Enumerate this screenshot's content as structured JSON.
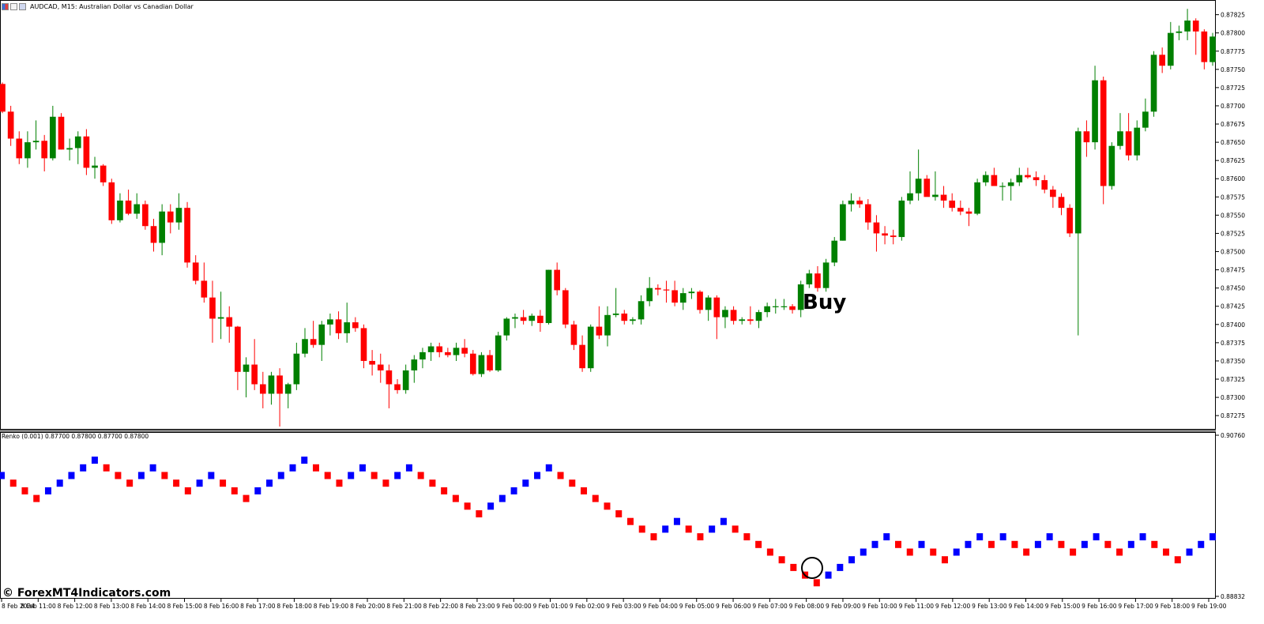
{
  "window": {
    "title": "AUDCAD, M15:  Australian Dollar vs Canadian Dollar",
    "icons": [
      "chart-type-icon",
      "window-icon",
      "properties-icon"
    ]
  },
  "colors": {
    "bull_candle": "#008000",
    "bear_candle": "#ff0000",
    "renko_up": "#0000ff",
    "renko_down": "#ff0000",
    "frame": "#000000",
    "separator": "#808080",
    "background": "#ffffff"
  },
  "annotations": {
    "buy_label": "Buy",
    "circle_marker": "renko-reversal-circle"
  },
  "watermark": "© ForexMT4Indicators.com",
  "renko_indicator": {
    "title": "Renko (0.001) 0.87700 0.87800 0.87700 0.87800",
    "y_ticks": [
      "0.90760",
      "0.88832"
    ]
  },
  "chart_data": [
    {
      "type": "candlestick",
      "title": "AUDCAD, M15:  Australian Dollar vs Canadian Dollar",
      "ylim": [
        0.8726,
        0.87843
      ],
      "y_ticks": [
        "0.87825",
        "0.87800",
        "0.87775",
        "0.87750",
        "0.87725",
        "0.87700",
        "0.87675",
        "0.87650",
        "0.87625",
        "0.87600",
        "0.87575",
        "0.87550",
        "0.87525",
        "0.87500",
        "0.87475",
        "0.87450",
        "0.87425",
        "0.87400",
        "0.87375",
        "0.87350",
        "0.87325",
        "0.87300",
        "0.87275"
      ],
      "x_ticks": [
        "8 Feb 2024",
        "8 Feb 11:00",
        "8 Feb 12:00",
        "8 Feb 13:00",
        "8 Feb 14:00",
        "8 Feb 15:00",
        "8 Feb 16:00",
        "8 Feb 17:00",
        "8 Feb 18:00",
        "8 Feb 19:00",
        "8 Feb 20:00",
        "8 Feb 21:00",
        "8 Feb 22:00",
        "8 Feb 23:00",
        "9 Feb 00:00",
        "9 Feb 01:00",
        "9 Feb 02:00",
        "9 Feb 03:00",
        "9 Feb 04:00",
        "9 Feb 05:00",
        "9 Feb 06:00",
        "9 Feb 07:00",
        "9 Feb 08:00",
        "9 Feb 09:00",
        "9 Feb 10:00",
        "9 Feb 11:00",
        "9 Feb 12:00",
        "9 Feb 13:00",
        "9 Feb 14:00",
        "9 Feb 15:00",
        "9 Feb 16:00",
        "9 Feb 17:00",
        "9 Feb 18:00",
        "9 Feb 19:00"
      ],
      "candles": [
        [
          0.8773,
          0.87732,
          0.8769,
          0.87692
        ],
        [
          0.87692,
          0.877,
          0.87645,
          0.87655
        ],
        [
          0.87655,
          0.87665,
          0.8762,
          0.87628
        ],
        [
          0.87628,
          0.87665,
          0.87615,
          0.8765
        ],
        [
          0.8765,
          0.8768,
          0.8764,
          0.87652
        ],
        [
          0.87652,
          0.8766,
          0.8761,
          0.87628
        ],
        [
          0.87628,
          0.877,
          0.87625,
          0.87685
        ],
        [
          0.87685,
          0.8769,
          0.8764,
          0.8764
        ],
        [
          0.8764,
          0.87655,
          0.87625,
          0.87642
        ],
        [
          0.87642,
          0.87665,
          0.8762,
          0.87658
        ],
        [
          0.87658,
          0.87668,
          0.87605,
          0.87615
        ],
        [
          0.87615,
          0.8763,
          0.876,
          0.87618
        ],
        [
          0.87618,
          0.8762,
          0.8759,
          0.87595
        ],
        [
          0.87595,
          0.876,
          0.87538,
          0.87543
        ],
        [
          0.87543,
          0.8758,
          0.8754,
          0.8757
        ],
        [
          0.8757,
          0.87585,
          0.8755,
          0.87552
        ],
        [
          0.87552,
          0.8758,
          0.87545,
          0.87565
        ],
        [
          0.87565,
          0.8757,
          0.8753,
          0.87535
        ],
        [
          0.87535,
          0.87545,
          0.875,
          0.87512
        ],
        [
          0.87512,
          0.87565,
          0.87495,
          0.87555
        ],
        [
          0.87555,
          0.87565,
          0.87525,
          0.8754
        ],
        [
          0.8754,
          0.8758,
          0.8753,
          0.8756
        ],
        [
          0.8756,
          0.87568,
          0.87478,
          0.87485
        ],
        [
          0.87485,
          0.87495,
          0.87455,
          0.8746
        ],
        [
          0.8746,
          0.87485,
          0.8743,
          0.87437
        ],
        [
          0.87437,
          0.8746,
          0.87375,
          0.87408
        ],
        [
          0.87408,
          0.87445,
          0.8738,
          0.8741
        ],
        [
          0.8741,
          0.87425,
          0.87375,
          0.87397
        ],
        [
          0.87397,
          0.87398,
          0.8731,
          0.87335
        ],
        [
          0.87335,
          0.87355,
          0.873,
          0.87345
        ],
        [
          0.87345,
          0.8738,
          0.8731,
          0.87318
        ],
        [
          0.87318,
          0.87335,
          0.87285,
          0.87305
        ],
        [
          0.87305,
          0.87335,
          0.8729,
          0.8733
        ],
        [
          0.8733,
          0.8734,
          0.8726,
          0.87305
        ],
        [
          0.87305,
          0.8732,
          0.87285,
          0.87318
        ],
        [
          0.87318,
          0.87375,
          0.8731,
          0.8736
        ],
        [
          0.8736,
          0.87395,
          0.87355,
          0.8738
        ],
        [
          0.8738,
          0.87405,
          0.87368,
          0.87372
        ],
        [
          0.87372,
          0.87405,
          0.8735,
          0.874
        ],
        [
          0.874,
          0.87415,
          0.87385,
          0.87407
        ],
        [
          0.87407,
          0.87418,
          0.8738,
          0.87388
        ],
        [
          0.87388,
          0.8743,
          0.87375,
          0.87403
        ],
        [
          0.87403,
          0.8741,
          0.8739,
          0.87395
        ],
        [
          0.87395,
          0.874,
          0.8734,
          0.8735
        ],
        [
          0.8735,
          0.87365,
          0.8733,
          0.87345
        ],
        [
          0.87345,
          0.8736,
          0.8732,
          0.87337
        ],
        [
          0.87337,
          0.87345,
          0.87285,
          0.87318
        ],
        [
          0.87318,
          0.87325,
          0.87305,
          0.8731
        ],
        [
          0.8731,
          0.87345,
          0.87305,
          0.87337
        ],
        [
          0.87337,
          0.87358,
          0.8732,
          0.87352
        ],
        [
          0.87352,
          0.87368,
          0.8734,
          0.87362
        ],
        [
          0.87362,
          0.87375,
          0.8735,
          0.8737
        ],
        [
          0.8737,
          0.87375,
          0.87355,
          0.87362
        ],
        [
          0.87362,
          0.87368,
          0.87355,
          0.87358
        ],
        [
          0.87358,
          0.87375,
          0.8735,
          0.87368
        ],
        [
          0.87368,
          0.8738,
          0.87355,
          0.8736
        ],
        [
          0.8736,
          0.87365,
          0.8733,
          0.87332
        ],
        [
          0.87332,
          0.87362,
          0.87328,
          0.87358
        ],
        [
          0.87358,
          0.87365,
          0.87335,
          0.87337
        ],
        [
          0.87337,
          0.8739,
          0.87335,
          0.87385
        ],
        [
          0.87385,
          0.8741,
          0.87378,
          0.87408
        ],
        [
          0.87408,
          0.87415,
          0.87395,
          0.8741
        ],
        [
          0.8741,
          0.8742,
          0.874,
          0.87405
        ],
        [
          0.87405,
          0.87415,
          0.87398,
          0.87412
        ],
        [
          0.87412,
          0.8742,
          0.8739,
          0.87402
        ],
        [
          0.87402,
          0.87475,
          0.874,
          0.87475
        ],
        [
          0.87475,
          0.87485,
          0.8744,
          0.87447
        ],
        [
          0.87447,
          0.8745,
          0.87395,
          0.874
        ],
        [
          0.874,
          0.87405,
          0.87365,
          0.87372
        ],
        [
          0.87372,
          0.87385,
          0.87335,
          0.8734
        ],
        [
          0.8734,
          0.874,
          0.87335,
          0.87397
        ],
        [
          0.87397,
          0.87425,
          0.8738,
          0.87385
        ],
        [
          0.87385,
          0.87425,
          0.8737,
          0.87413
        ],
        [
          0.87413,
          0.8745,
          0.8741,
          0.87415
        ],
        [
          0.87415,
          0.8742,
          0.874,
          0.87405
        ],
        [
          0.87405,
          0.8741,
          0.874,
          0.87407
        ],
        [
          0.87407,
          0.8744,
          0.874,
          0.87432
        ],
        [
          0.87432,
          0.87465,
          0.87425,
          0.8745
        ],
        [
          0.8745,
          0.87455,
          0.8744,
          0.87448
        ],
        [
          0.87448,
          0.8746,
          0.8743,
          0.87447
        ],
        [
          0.87447,
          0.8746,
          0.87425,
          0.8743
        ],
        [
          0.8743,
          0.8745,
          0.8742,
          0.87443
        ],
        [
          0.87443,
          0.8745,
          0.87435,
          0.87445
        ],
        [
          0.87445,
          0.87447,
          0.87415,
          0.8742
        ],
        [
          0.8742,
          0.8744,
          0.87405,
          0.87437
        ],
        [
          0.87437,
          0.8744,
          0.8738,
          0.8741
        ],
        [
          0.8741,
          0.87425,
          0.87395,
          0.8742
        ],
        [
          0.8742,
          0.87425,
          0.874,
          0.87405
        ],
        [
          0.87405,
          0.8741,
          0.874,
          0.87407
        ],
        [
          0.87407,
          0.87425,
          0.874,
          0.87405
        ],
        [
          0.87405,
          0.8742,
          0.87395,
          0.87417
        ],
        [
          0.87417,
          0.8743,
          0.8741,
          0.87425
        ],
        [
          0.87425,
          0.87435,
          0.87415,
          0.87425
        ],
        [
          0.87425,
          0.87435,
          0.8742,
          0.87425
        ],
        [
          0.87425,
          0.87428,
          0.87415,
          0.8742
        ],
        [
          0.8742,
          0.8746,
          0.8741,
          0.87455
        ],
        [
          0.87455,
          0.87475,
          0.8745,
          0.8747
        ],
        [
          0.8747,
          0.8748,
          0.87445,
          0.8745
        ],
        [
          0.8745,
          0.8749,
          0.87445,
          0.87485
        ],
        [
          0.87485,
          0.8752,
          0.8748,
          0.87515
        ],
        [
          0.87515,
          0.8757,
          0.87515,
          0.87565
        ],
        [
          0.87565,
          0.8758,
          0.87555,
          0.8757
        ],
        [
          0.8757,
          0.87575,
          0.8756,
          0.87565
        ],
        [
          0.87565,
          0.87572,
          0.8753,
          0.8754
        ],
        [
          0.8754,
          0.8755,
          0.875,
          0.87525
        ],
        [
          0.87525,
          0.87535,
          0.8751,
          0.87522
        ],
        [
          0.87522,
          0.8753,
          0.8751,
          0.8752
        ],
        [
          0.8752,
          0.87575,
          0.87515,
          0.8757
        ],
        [
          0.8757,
          0.8761,
          0.87565,
          0.8758
        ],
        [
          0.8758,
          0.8764,
          0.8757,
          0.876
        ],
        [
          0.876,
          0.87605,
          0.8758,
          0.87575
        ],
        [
          0.87575,
          0.8761,
          0.8757,
          0.87578
        ],
        [
          0.87578,
          0.8759,
          0.8756,
          0.8757
        ],
        [
          0.8757,
          0.8758,
          0.87555,
          0.8756
        ],
        [
          0.8756,
          0.8757,
          0.8755,
          0.87555
        ],
        [
          0.87555,
          0.8756,
          0.87535,
          0.87552
        ],
        [
          0.87552,
          0.876,
          0.8755,
          0.87595
        ],
        [
          0.87595,
          0.8761,
          0.8759,
          0.87605
        ],
        [
          0.87605,
          0.87615,
          0.8759,
          0.8759
        ],
        [
          0.8759,
          0.87595,
          0.8757,
          0.8759
        ],
        [
          0.8759,
          0.876,
          0.8757,
          0.87595
        ],
        [
          0.87595,
          0.87615,
          0.8759,
          0.87605
        ],
        [
          0.87605,
          0.87615,
          0.876,
          0.87602
        ],
        [
          0.87602,
          0.8761,
          0.8759,
          0.87598
        ],
        [
          0.87598,
          0.87605,
          0.8758,
          0.87585
        ],
        [
          0.87585,
          0.8759,
          0.8756,
          0.87575
        ],
        [
          0.87575,
          0.8758,
          0.8755,
          0.8756
        ],
        [
          0.8756,
          0.87565,
          0.8752,
          0.87525
        ],
        [
          0.87525,
          0.8767,
          0.87385,
          0.87665
        ],
        [
          0.87665,
          0.8768,
          0.8763,
          0.8765
        ],
        [
          0.8765,
          0.87755,
          0.8764,
          0.87735
        ],
        [
          0.87735,
          0.8774,
          0.87565,
          0.8759
        ],
        [
          0.8759,
          0.8765,
          0.87585,
          0.87645
        ],
        [
          0.87645,
          0.8769,
          0.8764,
          0.87665
        ],
        [
          0.87665,
          0.8769,
          0.87625,
          0.87632
        ],
        [
          0.87632,
          0.8768,
          0.87625,
          0.8767
        ],
        [
          0.8767,
          0.8771,
          0.87665,
          0.87692
        ],
        [
          0.87692,
          0.87775,
          0.87685,
          0.8777
        ],
        [
          0.8777,
          0.8778,
          0.87745,
          0.87755
        ],
        [
          0.87755,
          0.87815,
          0.8775,
          0.878
        ],
        [
          0.878,
          0.8781,
          0.8779,
          0.87802
        ],
        [
          0.87802,
          0.87833,
          0.8779,
          0.87817
        ],
        [
          0.87817,
          0.8782,
          0.8777,
          0.87802
        ],
        [
          0.87802,
          0.87805,
          0.8775,
          0.8776
        ],
        [
          0.8776,
          0.878,
          0.87755,
          0.87795
        ]
      ]
    },
    {
      "type": "renko",
      "title": "Renko (0.001) 0.87700 0.87800 0.87700 0.87800",
      "series": [
        {
          "name": "up",
          "color": "#0000ff"
        },
        {
          "name": "down",
          "color": "#ff0000"
        }
      ],
      "bricks": [
        0,
        -1,
        -2,
        -3,
        -2,
        -1,
        0,
        1,
        2,
        1,
        0,
        -1,
        0,
        1,
        0,
        -1,
        -2,
        -1,
        0,
        -1,
        -2,
        -3,
        -2,
        -1,
        0,
        1,
        2,
        1,
        0,
        -1,
        0,
        1,
        0,
        -1,
        0,
        1,
        0,
        -1,
        -2,
        -3,
        -4,
        -5,
        -4,
        -3,
        -2,
        -1,
        0,
        1,
        0,
        -1,
        -2,
        -3,
        -4,
        -5,
        -6,
        -7,
        -8,
        -7,
        -6,
        -7,
        -8,
        -7,
        -6,
        -7,
        -8,
        -9,
        -10,
        -11,
        -12,
        -13,
        -14,
        -13,
        -12,
        -11,
        -10,
        -9,
        -8,
        -9,
        -10,
        -9,
        -10,
        -11,
        -10,
        -9,
        -8,
        -9,
        -8,
        -9,
        -10,
        -9,
        -8,
        -9,
        -10,
        -9,
        -8,
        -9,
        -10,
        -9,
        -8,
        -9,
        -10,
        -11,
        -10,
        -9,
        -8
      ]
    }
  ]
}
